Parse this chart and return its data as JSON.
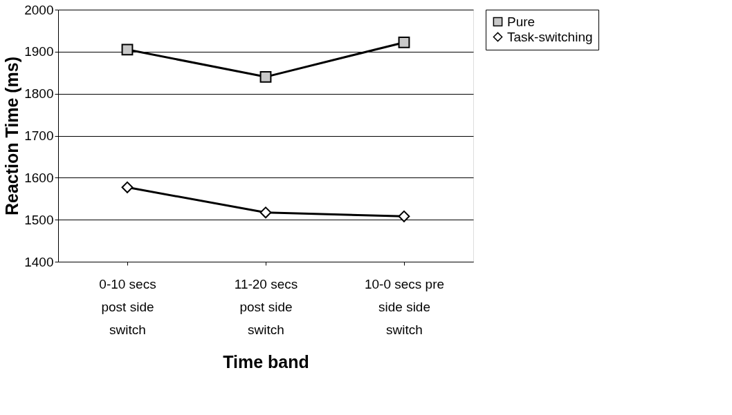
{
  "chart_data": {
    "type": "line",
    "xlabel": "Time band",
    "ylabel": "Reaction Time (ms)",
    "categories": [
      "0-10 secs\npost side\nswitch",
      "11-20 secs\npost side\nswitch",
      "10-0 secs pre\nside side\nswitch"
    ],
    "series": [
      {
        "name": "Pure",
        "color": "#000000",
        "marker": "square",
        "values": [
          1905,
          1840,
          1922
        ]
      },
      {
        "name": "Task-switching",
        "color": "#000000",
        "marker": "diamond",
        "values": [
          1577,
          1517,
          1508
        ]
      }
    ],
    "ylim": [
      1400,
      2000
    ],
    "yticks": [
      1400,
      1500,
      1600,
      1700,
      1800,
      1900,
      2000
    ],
    "grid": "y",
    "legend": "right",
    "line_style": "solid"
  }
}
